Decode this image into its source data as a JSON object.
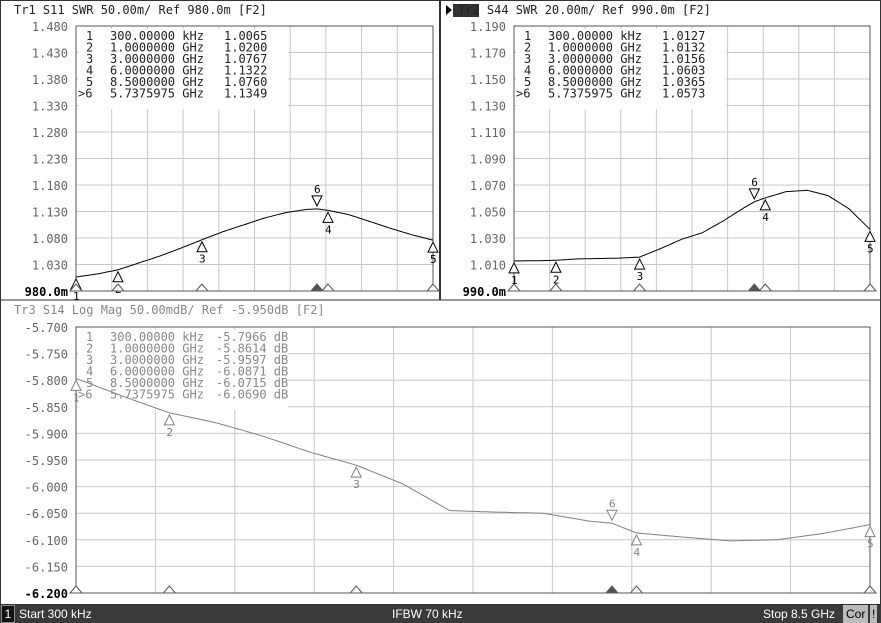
{
  "chart_data": [
    {
      "type": "line",
      "title": "Tr1 S11 SWR 50.00m/ Ref 980.0m [F2]",
      "trace_color": "#000000",
      "active": false,
      "ylim": [
        0.98,
        1.48
      ],
      "yticks": [
        "1.480",
        "1.430",
        "1.380",
        "1.330",
        "1.280",
        "1.230",
        "1.180",
        "1.130",
        "1.080",
        "1.030",
        "980.0m"
      ],
      "xlim_ghz": [
        0.0003,
        8.5
      ],
      "x": [
        0.0003,
        0.5,
        1,
        1.5,
        2,
        2.5,
        3,
        3.5,
        4,
        4.5,
        5,
        5.5,
        5.74,
        6,
        6.5,
        7,
        7.5,
        8,
        8.5
      ],
      "y": [
        1.0065,
        1.012,
        1.02,
        1.033,
        1.046,
        1.061,
        1.0767,
        1.092,
        1.105,
        1.118,
        1.128,
        1.134,
        1.1349,
        1.1322,
        1.124,
        1.111,
        1.098,
        1.086,
        1.076
      ],
      "markers": [
        {
          "id": "1",
          "freq": "300.00000 kHz",
          "f": 0.0003,
          "value": "1.0065",
          "v": 1.0065
        },
        {
          "id": "2",
          "freq": "1.0000000 GHz",
          "f": 1,
          "value": "1.0200",
          "v": 1.02
        },
        {
          "id": "3",
          "freq": "3.0000000 GHz",
          "f": 3,
          "value": "1.0767",
          "v": 1.0767
        },
        {
          "id": "4",
          "freq": "6.0000000 GHz",
          "f": 6,
          "value": "1.1322",
          "v": 1.1322
        },
        {
          "id": "5",
          "freq": "8.5000000 GHz",
          "f": 8.5,
          "value": "1.0760",
          "v": 1.076
        },
        {
          "id": ">6",
          "freq": "5.7375975 GHz",
          "f": 5.7375975,
          "value": "1.1349",
          "v": 1.1349
        }
      ]
    },
    {
      "type": "line",
      "title": "Tr2 S44 SWR 20.00m/ Ref 990.0m [F2]",
      "trace_color": "#000000",
      "active": true,
      "ylim": [
        0.99,
        1.19
      ],
      "yticks": [
        "1.190",
        "1.170",
        "1.150",
        "1.130",
        "1.110",
        "1.090",
        "1.070",
        "1.050",
        "1.030",
        "1.010",
        "990.0m"
      ],
      "xlim_ghz": [
        0.0003,
        8.5
      ],
      "x": [
        0.0003,
        0.5,
        1,
        1.5,
        2,
        2.5,
        3,
        3.5,
        4,
        4.5,
        5,
        5.5,
        5.74,
        6,
        6.5,
        7,
        7.5,
        8,
        8.5
      ],
      "y": [
        1.0127,
        1.0128,
        1.0132,
        1.0142,
        1.0145,
        1.0148,
        1.0156,
        1.022,
        1.029,
        1.034,
        1.043,
        1.053,
        1.0573,
        1.0603,
        1.065,
        1.066,
        1.062,
        1.052,
        1.0365
      ],
      "markers": [
        {
          "id": "1",
          "freq": "300.00000 kHz",
          "f": 0.0003,
          "value": "1.0127",
          "v": 1.0127
        },
        {
          "id": "2",
          "freq": "1.0000000 GHz",
          "f": 1,
          "value": "1.0132",
          "v": 1.0132
        },
        {
          "id": "3",
          "freq": "3.0000000 GHz",
          "f": 3,
          "value": "1.0156",
          "v": 1.0156
        },
        {
          "id": "4",
          "freq": "6.0000000 GHz",
          "f": 6,
          "value": "1.0603",
          "v": 1.0603
        },
        {
          "id": "5",
          "freq": "8.5000000 GHz",
          "f": 8.5,
          "value": "1.0365",
          "v": 1.0365
        },
        {
          "id": ">6",
          "freq": "5.7375975 GHz",
          "f": 5.7375975,
          "value": "1.0573",
          "v": 1.0573
        }
      ]
    },
    {
      "type": "line",
      "title": "Tr3 S14 Log Mag 50.00mdB/ Ref -5.950dB [F2]",
      "trace_color": "#808080",
      "active": false,
      "ylim": [
        -6.2,
        -5.7
      ],
      "yticks": [
        "-5.700",
        "-5.750",
        "-5.800",
        "-5.850",
        "-5.900",
        "-5.950",
        "-6.000",
        "-6.050",
        "-6.100",
        "-6.150",
        "-6.200"
      ],
      "xlim_ghz": [
        0.0003,
        8.5
      ],
      "x": [
        0.0003,
        0.5,
        1,
        1.5,
        2,
        2.5,
        3,
        3.5,
        4,
        4.5,
        5,
        5.5,
        5.74,
        6,
        6.5,
        7,
        7.5,
        8,
        8.5
      ],
      "y": [
        -5.7966,
        -5.83,
        -5.8614,
        -5.88,
        -5.905,
        -5.935,
        -5.9597,
        -5.995,
        -6.045,
        -6.048,
        -6.05,
        -6.065,
        -6.069,
        -6.0871,
        -6.095,
        -6.102,
        -6.1,
        -6.088,
        -6.0715
      ],
      "markers": [
        {
          "id": "1",
          "freq": "300.00000 kHz",
          "f": 0.0003,
          "value": "-5.7966 dB",
          "v": -5.7966
        },
        {
          "id": "2",
          "freq": "1.0000000 GHz",
          "f": 1,
          "value": "-5.8614 dB",
          "v": -5.8614
        },
        {
          "id": "3",
          "freq": "3.0000000 GHz",
          "f": 3,
          "value": "-5.9597 dB",
          "v": -5.9597
        },
        {
          "id": "4",
          "freq": "6.0000000 GHz",
          "f": 6,
          "value": "-6.0871 dB",
          "v": -6.0871
        },
        {
          "id": "5",
          "freq": "8.5000000 GHz",
          "f": 8.5,
          "value": "-6.0715 dB",
          "v": -6.0715
        },
        {
          "id": ">6",
          "freq": "5.7375975 GHz",
          "f": 5.7375975,
          "value": "-6.0690 dB",
          "v": -6.069
        }
      ]
    }
  ],
  "status": {
    "channel": "1",
    "start": "Start 300 kHz",
    "ifbw": "IFBW 70 kHz",
    "stop": "Stop 8.5 GHz",
    "cor": "Cor",
    "alert": "!"
  }
}
